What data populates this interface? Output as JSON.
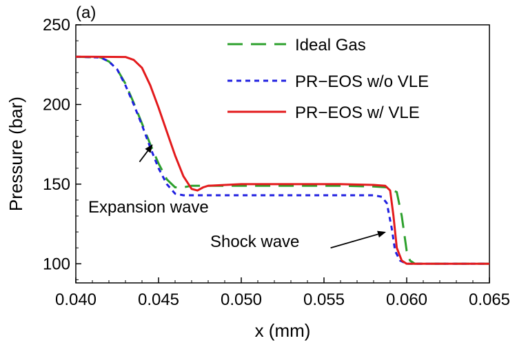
{
  "chart_data": {
    "type": "line",
    "panel_label": "(a)",
    "xlabel": "x (mm)",
    "ylabel": "Pressure (bar)",
    "xlim": [
      0.04,
      0.065
    ],
    "ylim": [
      88,
      250
    ],
    "xticks": [
      0.04,
      0.045,
      0.05,
      0.055,
      0.06,
      0.065
    ],
    "xtick_labels": [
      "0.040",
      "0.045",
      "0.050",
      "0.055",
      "0.060",
      "0.065"
    ],
    "yticks": [
      100,
      150,
      200,
      250
    ],
    "ytick_labels": [
      "100",
      "150",
      "200",
      "250"
    ],
    "legend_position": "top-right",
    "series": [
      {
        "name": "Ideal Gas",
        "color": "#2ca02c",
        "dash": "long-dash",
        "points": [
          [
            0.04,
            230
          ],
          [
            0.0415,
            229.5
          ],
          [
            0.042,
            227
          ],
          [
            0.0425,
            222
          ],
          [
            0.043,
            213
          ],
          [
            0.0435,
            201
          ],
          [
            0.044,
            188
          ],
          [
            0.0445,
            175
          ],
          [
            0.045,
            163
          ],
          [
            0.0455,
            153
          ],
          [
            0.046,
            148
          ],
          [
            0.0465,
            148
          ],
          [
            0.047,
            149
          ],
          [
            0.048,
            149
          ],
          [
            0.05,
            149
          ],
          [
            0.052,
            149
          ],
          [
            0.054,
            149
          ],
          [
            0.056,
            149
          ],
          [
            0.058,
            148.5
          ],
          [
            0.0588,
            148
          ],
          [
            0.0594,
            145
          ],
          [
            0.0597,
            130
          ],
          [
            0.06,
            108
          ],
          [
            0.0602,
            102
          ],
          [
            0.0605,
            100
          ],
          [
            0.0615,
            100
          ],
          [
            0.065,
            100
          ]
        ]
      },
      {
        "name": "PR−EOS w/o VLE",
        "color": "#1f1fe0",
        "dash": "short-dash",
        "points": [
          [
            0.04,
            230
          ],
          [
            0.0415,
            229.5
          ],
          [
            0.042,
            227
          ],
          [
            0.0425,
            222
          ],
          [
            0.043,
            212
          ],
          [
            0.0435,
            200
          ],
          [
            0.044,
            187
          ],
          [
            0.0445,
            173
          ],
          [
            0.045,
            160
          ],
          [
            0.0455,
            150
          ],
          [
            0.046,
            144
          ],
          [
            0.0465,
            143
          ],
          [
            0.048,
            143
          ],
          [
            0.05,
            143
          ],
          [
            0.052,
            143
          ],
          [
            0.054,
            143
          ],
          [
            0.056,
            143
          ],
          [
            0.058,
            143
          ],
          [
            0.0585,
            142
          ],
          [
            0.0588,
            138
          ],
          [
            0.0591,
            122
          ],
          [
            0.0593,
            108
          ],
          [
            0.0596,
            102
          ],
          [
            0.06,
            100
          ],
          [
            0.0615,
            100
          ],
          [
            0.065,
            100
          ]
        ]
      },
      {
        "name": "PR−EOS w/ VLE",
        "color": "#e31a1c",
        "dash": "solid",
        "points": [
          [
            0.04,
            230
          ],
          [
            0.043,
            229.8
          ],
          [
            0.0435,
            228
          ],
          [
            0.044,
            223
          ],
          [
            0.0445,
            212
          ],
          [
            0.045,
            198
          ],
          [
            0.0455,
            183
          ],
          [
            0.046,
            168
          ],
          [
            0.0465,
            155
          ],
          [
            0.047,
            147
          ],
          [
            0.04735,
            146
          ],
          [
            0.0477,
            148
          ],
          [
            0.048,
            149
          ],
          [
            0.05,
            150
          ],
          [
            0.052,
            150
          ],
          [
            0.054,
            150
          ],
          [
            0.056,
            150
          ],
          [
            0.058,
            149.5
          ],
          [
            0.0587,
            149
          ],
          [
            0.059,
            146
          ],
          [
            0.0592,
            130
          ],
          [
            0.0594,
            110
          ],
          [
            0.0597,
            102
          ],
          [
            0.06,
            100
          ],
          [
            0.0615,
            100
          ],
          [
            0.065,
            100
          ]
        ]
      }
    ],
    "annotations": [
      {
        "text": "Expansion wave",
        "arrow_from": [
          0.04385,
          164
        ],
        "arrow_to": [
          0.04465,
          175
        ]
      },
      {
        "text": "Shock wave",
        "arrow_from": [
          0.0554,
          110
        ],
        "arrow_to": [
          0.05875,
          120
        ]
      }
    ]
  }
}
